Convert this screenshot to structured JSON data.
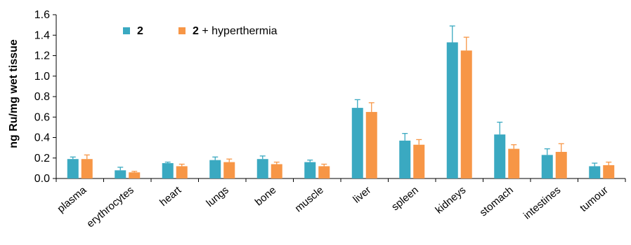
{
  "chart_data": {
    "type": "bar",
    "ylabel": "ng Ru/mg wet tissue",
    "xlabel": "",
    "title": "",
    "ylim": [
      0,
      1.6
    ],
    "yticks": [
      "0.0",
      "0.2",
      "0.4",
      "0.6",
      "0.8",
      "1.0",
      "1.2",
      "1.4",
      "1.6"
    ],
    "grid": false,
    "legend_position": "top-left",
    "categories": [
      "plasma",
      "erythrocytes",
      "heart",
      "lungs",
      "bone",
      "muscle",
      "liver",
      "spleen",
      "kidneys",
      "stomach",
      "intestines",
      "tumour"
    ],
    "series": [
      {
        "legend_bold": "2",
        "legend_rest": "",
        "color": "#3aa9c1",
        "values": [
          0.19,
          0.08,
          0.15,
          0.18,
          0.19,
          0.16,
          0.69,
          0.37,
          1.33,
          0.43,
          0.23,
          0.12
        ],
        "errors": [
          0.02,
          0.03,
          0.01,
          0.03,
          0.03,
          0.02,
          0.08,
          0.07,
          0.16,
          0.12,
          0.06,
          0.03
        ]
      },
      {
        "legend_bold": "2",
        "legend_rest": " + hyperthermia",
        "color": "#f79646",
        "values": [
          0.19,
          0.06,
          0.12,
          0.16,
          0.14,
          0.12,
          0.65,
          0.33,
          1.25,
          0.29,
          0.26,
          0.13
        ],
        "errors": [
          0.04,
          0.01,
          0.02,
          0.03,
          0.02,
          0.02,
          0.09,
          0.05,
          0.13,
          0.04,
          0.08,
          0.03
        ]
      }
    ]
  }
}
